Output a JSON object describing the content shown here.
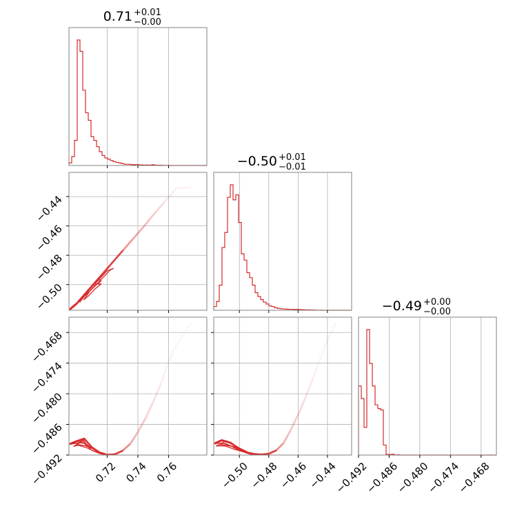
{
  "chart_data": {
    "type": "corner",
    "color": "#d62728",
    "grid": true,
    "parameters": [
      {
        "range": [
          0.695,
          0.785
        ],
        "ticks": [
          0.72,
          0.74,
          0.76
        ],
        "tick_labels": [
          "0.72",
          "0.74",
          "0.76"
        ]
      },
      {
        "range": [
          -0.5175,
          -0.4235
        ],
        "ticks": [
          -0.5,
          -0.48,
          -0.46,
          -0.44
        ],
        "tick_labels": [
          "−0.50",
          "−0.48",
          "−0.46",
          "−0.44"
        ]
      },
      {
        "range": [
          -0.492,
          -0.465
        ],
        "ticks": [
          -0.492,
          -0.486,
          -0.48,
          -0.474,
          -0.468
        ],
        "tick_labels": [
          "−0.492",
          "−0.486",
          "−0.480",
          "−0.474",
          "−0.468"
        ]
      }
    ],
    "titles": [
      {
        "main": "0.71",
        "plus": "+0.01",
        "minus": "−0.00"
      },
      {
        "main": "−0.50",
        "plus": "+0.01",
        "minus": "−0.01"
      },
      {
        "main": "−0.49",
        "plus": "+0.00",
        "minus": "−0.00"
      }
    ],
    "histograms": [
      {
        "edges_start": 0.695,
        "bin_width": 0.0018,
        "counts": [
          0.02,
          0.07,
          0.2,
          1.0,
          0.91,
          0.6,
          0.42,
          0.36,
          0.23,
          0.2,
          0.15,
          0.11,
          0.08,
          0.06,
          0.05,
          0.04,
          0.03,
          0.025,
          0.02,
          0.015,
          0.01,
          0.01,
          0.008,
          0.006,
          0.008,
          0.005,
          0.004,
          0.003,
          0.004,
          0.003,
          0.006,
          0.003,
          0.002,
          0.002,
          0.001,
          0.001,
          0.001,
          0.0,
          0.0,
          0.0,
          0.0,
          0.0,
          0.0,
          0.0,
          0.0,
          0.0,
          0.0,
          0.0,
          0.0,
          0.0
        ]
      },
      {
        "edges_start": -0.5175,
        "bin_width": 0.00188,
        "counts": [
          0.03,
          0.07,
          0.2,
          0.5,
          0.62,
          0.9,
          1.0,
          0.88,
          0.92,
          0.7,
          0.45,
          0.4,
          0.3,
          0.26,
          0.2,
          0.14,
          0.11,
          0.085,
          0.065,
          0.05,
          0.035,
          0.03,
          0.02,
          0.015,
          0.012,
          0.01,
          0.009,
          0.008,
          0.008,
          0.006,
          0.007,
          0.005,
          0.004,
          0.003,
          0.003,
          0.002,
          0.002,
          0.001,
          0.001,
          0.0,
          0.0,
          0.0,
          0.0,
          0.0,
          0.0,
          0.0,
          0.0,
          0.0,
          0.0,
          0.0
        ]
      },
      {
        "edges_start": -0.492,
        "bin_width": 0.00054,
        "counts": [
          0.55,
          0.45,
          0.22,
          1.0,
          0.73,
          0.55,
          0.4,
          0.37,
          0.36,
          0.08,
          0.005,
          0.004,
          0.006,
          0.0,
          0.002,
          0.0,
          0.0,
          0.0,
          0.0,
          0.0,
          0.0,
          0.0,
          0.0,
          0.0,
          0.0,
          0.0,
          0.0,
          0.0,
          0.0,
          0.0,
          0.0,
          0.0,
          0.0,
          0.0,
          0.0,
          0.0,
          0.0,
          0.0,
          0.0,
          0.0,
          0.0,
          0.0,
          0.0,
          0.0,
          0.0,
          0.0,
          0.0,
          0.0,
          0.0,
          0.0
        ]
      }
    ],
    "pair_curves": {
      "p1_vs_p0": [
        [
          0.696,
          -0.5165
        ],
        [
          0.7,
          -0.513
        ],
        [
          0.705,
          -0.507
        ],
        [
          0.71,
          -0.501
        ],
        [
          0.715,
          -0.495
        ],
        [
          0.72,
          -0.489
        ],
        [
          0.725,
          -0.483
        ],
        [
          0.73,
          -0.477
        ],
        [
          0.735,
          -0.471
        ],
        [
          0.74,
          -0.465
        ],
        [
          0.745,
          -0.459
        ],
        [
          0.75,
          -0.4525
        ],
        [
          0.755,
          -0.4465
        ],
        [
          0.76,
          -0.4405
        ],
        [
          0.765,
          -0.4345
        ],
        [
          0.7755,
          -0.4335
        ]
      ],
      "p2_vs_p0": [
        [
          0.696,
          -0.4898
        ],
        [
          0.7,
          -0.4893
        ],
        [
          0.705,
          -0.4888
        ],
        [
          0.71,
          -0.4905
        ],
        [
          0.715,
          -0.4915
        ],
        [
          0.72,
          -0.49195
        ],
        [
          0.725,
          -0.49185
        ],
        [
          0.73,
          -0.49115
        ],
        [
          0.735,
          -0.4898
        ],
        [
          0.74,
          -0.4875
        ],
        [
          0.745,
          -0.4848
        ],
        [
          0.75,
          -0.4816
        ],
        [
          0.755,
          -0.4781
        ],
        [
          0.76,
          -0.4738
        ],
        [
          0.765,
          -0.4705
        ],
        [
          0.7755,
          -0.4657
        ]
      ],
      "p2_vs_p1": [
        [
          -0.5165,
          -0.4897
        ],
        [
          -0.512,
          -0.4891
        ],
        [
          -0.506,
          -0.4896
        ],
        [
          -0.5,
          -0.4908
        ],
        [
          -0.495,
          -0.4915
        ],
        [
          -0.49,
          -0.4918
        ],
        [
          -0.485,
          -0.4919
        ],
        [
          -0.48,
          -0.49175
        ],
        [
          -0.475,
          -0.4911
        ],
        [
          -0.47,
          -0.4897
        ],
        [
          -0.465,
          -0.4871
        ],
        [
          -0.46,
          -0.4841
        ],
        [
          -0.455,
          -0.4808
        ],
        [
          -0.45,
          -0.4771
        ],
        [
          -0.445,
          -0.4731
        ],
        [
          -0.44,
          -0.4695
        ],
        [
          -0.4335,
          -0.4657
        ]
      ]
    },
    "pair_contours": {
      "p1_vs_p0": [
        [
          [
            0.702,
            -0.512
          ],
          [
            0.705,
            -0.508
          ],
          [
            0.709,
            -0.504
          ],
          [
            0.713,
            -0.5
          ],
          [
            0.716,
            -0.4975
          ],
          [
            0.715,
            -0.4965
          ],
          [
            0.71,
            -0.501
          ],
          [
            0.705,
            -0.507
          ],
          [
            0.702,
            -0.5105
          ],
          [
            0.702,
            -0.512
          ]
        ],
        [
          [
            0.7035,
            -0.5095
          ],
          [
            0.706,
            -0.507
          ],
          [
            0.712,
            -0.501
          ],
          [
            0.722,
            -0.49
          ],
          [
            0.724,
            -0.489
          ],
          [
            0.72,
            -0.4905
          ],
          [
            0.712,
            -0.4995
          ],
          [
            0.706,
            -0.5055
          ],
          [
            0.7035,
            -0.5095
          ]
        ],
        [
          [
            0.7045,
            -0.5105
          ],
          [
            0.708,
            -0.5075
          ],
          [
            0.712,
            -0.503
          ],
          [
            0.716,
            -0.4995
          ],
          [
            0.713,
            -0.4995
          ],
          [
            0.709,
            -0.504
          ],
          [
            0.7045,
            -0.5105
          ]
        ]
      ],
      "p2_vs_p0": [
        [
          [
            0.697,
            -0.4898
          ],
          [
            0.7,
            -0.4893
          ],
          [
            0.704,
            -0.4889
          ],
          [
            0.707,
            -0.4902
          ],
          [
            0.711,
            -0.4908
          ],
          [
            0.713,
            -0.4912
          ],
          [
            0.708,
            -0.4903
          ],
          [
            0.704,
            -0.4892
          ],
          [
            0.7,
            -0.4897
          ],
          [
            0.697,
            -0.4898
          ]
        ],
        [
          [
            0.698,
            -0.4903
          ],
          [
            0.702,
            -0.4896
          ],
          [
            0.705,
            -0.4897
          ],
          [
            0.71,
            -0.4911
          ],
          [
            0.715,
            -0.4917
          ],
          [
            0.719,
            -0.492
          ],
          [
            0.712,
            -0.4913
          ],
          [
            0.706,
            -0.4905
          ],
          [
            0.701,
            -0.4901
          ],
          [
            0.698,
            -0.4903
          ]
        ],
        [
          [
            0.7,
            -0.4899
          ],
          [
            0.703,
            -0.4894
          ],
          [
            0.706,
            -0.4899
          ],
          [
            0.71,
            -0.4907
          ],
          [
            0.706,
            -0.4902
          ],
          [
            0.7,
            -0.4899
          ]
        ]
      ],
      "p2_vs_p1": [
        [
          [
            -0.5165,
            -0.4897
          ],
          [
            -0.513,
            -0.4891
          ],
          [
            -0.508,
            -0.4893
          ],
          [
            -0.503,
            -0.4902
          ],
          [
            -0.498,
            -0.4909
          ],
          [
            -0.495,
            -0.4913
          ],
          [
            -0.499,
            -0.4909
          ],
          [
            -0.505,
            -0.4903
          ],
          [
            -0.51,
            -0.4897
          ],
          [
            -0.5165,
            -0.4897
          ]
        ],
        [
          [
            -0.516,
            -0.4902
          ],
          [
            -0.511,
            -0.4897
          ],
          [
            -0.506,
            -0.4902
          ],
          [
            -0.5,
            -0.4911
          ],
          [
            -0.493,
            -0.4918
          ],
          [
            -0.49,
            -0.492
          ],
          [
            -0.496,
            -0.4915
          ],
          [
            -0.503,
            -0.4909
          ],
          [
            -0.51,
            -0.4902
          ],
          [
            -0.516,
            -0.4902
          ]
        ],
        [
          [
            -0.5135,
            -0.4899
          ],
          [
            -0.51,
            -0.4893
          ],
          [
            -0.505,
            -0.4898
          ],
          [
            -0.5,
            -0.4907
          ],
          [
            -0.505,
            -0.4903
          ],
          [
            -0.5135,
            -0.4899
          ]
        ]
      ]
    }
  }
}
